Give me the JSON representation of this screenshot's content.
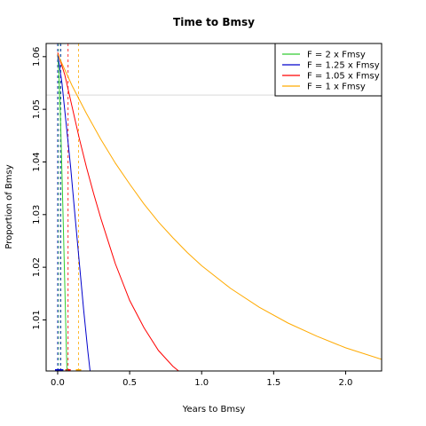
{
  "chart_data": {
    "type": "line",
    "title": "Time to Bmsy",
    "xlabel": "Years to Bmsy",
    "ylabel": "Proportion of Bmsy",
    "xlim": [
      -0.08,
      2.25
    ],
    "ylim": [
      1.0003,
      1.0625
    ],
    "xticks": [
      0.0,
      0.5,
      1.0,
      1.5,
      2.0
    ],
    "xtick_labels": [
      "0.0",
      "0.5",
      "1.0",
      "1.5",
      "2.0"
    ],
    "yticks": [
      1.01,
      1.02,
      1.03,
      1.04,
      1.05,
      1.06
    ],
    "ytick_labels": [
      "1.01",
      "1.02",
      "1.03",
      "1.04",
      "1.05",
      "1.06"
    ],
    "grid": false,
    "legend_position": "top-right",
    "reference_hline": 1.0527,
    "series": [
      {
        "name": "F = 2 x Fmsy",
        "color": "#33cc33",
        "x": [
          0.0,
          0.01,
          0.02,
          0.03,
          0.04,
          0.05,
          0.06,
          0.065
        ],
        "y": [
          1.0605,
          1.056,
          1.048,
          1.038,
          1.027,
          1.016,
          1.005,
          1.0003
        ],
        "vlines": [
          0.005,
          0.022
        ]
      },
      {
        "name": "F = 1.25 x Fmsy",
        "color": "#0000cc",
        "x": [
          0.0,
          0.03,
          0.06,
          0.09,
          0.12,
          0.15,
          0.18,
          0.21,
          0.225
        ],
        "y": [
          1.0605,
          1.055,
          1.047,
          1.039,
          1.03,
          1.021,
          1.012,
          1.004,
          1.0003
        ],
        "vlines": [
          0.0,
          0.02
        ]
      },
      {
        "name": "F = 1.05 x Fmsy",
        "color": "#ff0000",
        "x": [
          0.0,
          0.05,
          0.1,
          0.15,
          0.2,
          0.25,
          0.3,
          0.4,
          0.5,
          0.6,
          0.7,
          0.8,
          0.84
        ],
        "y": [
          1.0608,
          1.0565,
          1.0505,
          1.0445,
          1.039,
          1.034,
          1.0293,
          1.0207,
          1.0137,
          1.0085,
          1.0042,
          1.0012,
          1.0003
        ],
        "vlines": [
          0.072
        ]
      },
      {
        "name": "F = 1 x Fmsy",
        "color": "#ffaa00",
        "x": [
          0.0,
          0.1,
          0.2,
          0.3,
          0.4,
          0.5,
          0.6,
          0.7,
          0.8,
          0.9,
          1.0,
          1.2,
          1.4,
          1.6,
          1.8,
          2.0,
          2.25
        ],
        "y": [
          1.0605,
          1.0545,
          1.0492,
          1.0443,
          1.0398,
          1.0358,
          1.032,
          1.0286,
          1.0256,
          1.0228,
          1.0203,
          1.016,
          1.0124,
          1.0094,
          1.0069,
          1.0047,
          1.0025
        ],
        "vlines": [
          0.145
        ]
      }
    ]
  }
}
